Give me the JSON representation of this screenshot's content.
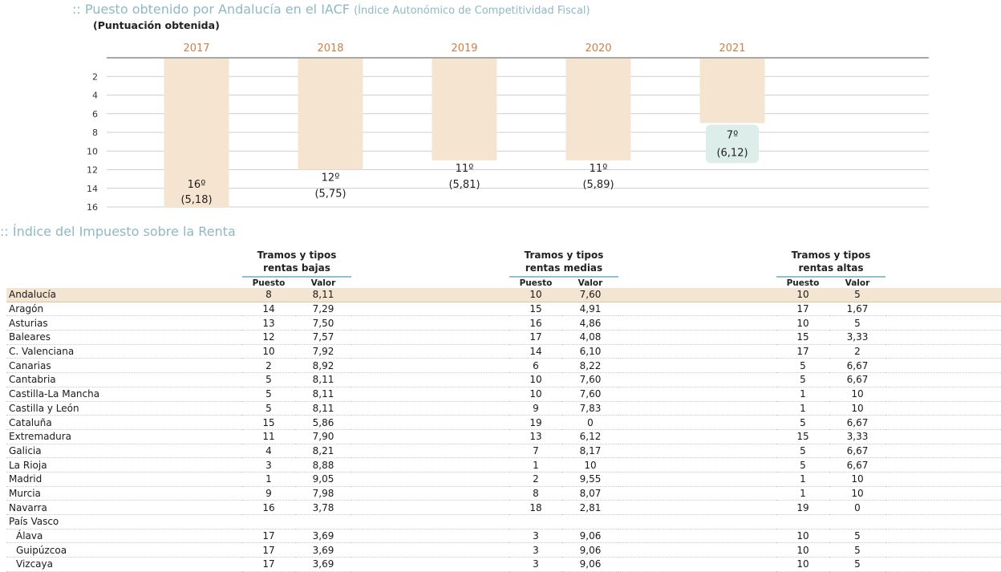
{
  "chart_section": {
    "title": ":: Puesto obtenido por Andalucía en el IACF",
    "title_note": "(Índice Autonómico de Competitividad Fiscal)",
    "subtitle": "(Puntuación obtenida)"
  },
  "chart_data": {
    "type": "bar",
    "title": "Puesto obtenido por Andalucía en el IACF (Índice Autonómico de Competitividad Fiscal)",
    "subtitle": "(Puntuación obtenida)",
    "categories": [
      "2017",
      "2018",
      "2019",
      "2020",
      "2021"
    ],
    "values": [
      16,
      12,
      11,
      11,
      7
    ],
    "scores": [
      "5,18",
      "5,75",
      "5,81",
      "5,89",
      "6,12"
    ],
    "rank_labels": [
      "16º",
      "12º",
      "11º",
      "11º",
      "7º"
    ],
    "score_labels": [
      "(5,18)",
      "(5,75)",
      "(5,81)",
      "(5,89)",
      "(6,12)"
    ],
    "y_axis": {
      "inverted": true,
      "ylim": [
        0,
        16
      ],
      "ticks": [
        "2",
        "4",
        "6",
        "8",
        "10",
        "12",
        "14",
        "16"
      ]
    },
    "xlabel": "",
    "ylabel": "",
    "grid": true,
    "colors": {
      "bar": "#f5e4d0",
      "highlight_box": "#dcedea",
      "year_label": "#c8804c",
      "grid": "#bfbfbf"
    }
  },
  "table_section": {
    "title": ":: Índice del Impuesto sobre la Renta",
    "groups": [
      {
        "line1": "Tramos y tipos",
        "line2": "rentas bajas"
      },
      {
        "line1": "Tramos y tipos",
        "line2": "rentas medias"
      },
      {
        "line1": "Tramos y tipos",
        "line2": "rentas altas"
      }
    ],
    "col_puesto": "Puesto",
    "col_valor": "Valor",
    "rows": [
      {
        "name": "Andalucía",
        "highlight": true,
        "values": [
          "8",
          "8,11",
          "10",
          "7,60",
          "10",
          "5"
        ]
      },
      {
        "name": "Aragón",
        "values": [
          "14",
          "7,29",
          "15",
          "4,91",
          "17",
          "1,67"
        ]
      },
      {
        "name": "Asturias",
        "values": [
          "13",
          "7,50",
          "16",
          "4,86",
          "10",
          "5"
        ]
      },
      {
        "name": "Baleares",
        "values": [
          "12",
          "7,57",
          "17",
          "4,08",
          "15",
          "3,33"
        ]
      },
      {
        "name": "C. Valenciana",
        "values": [
          "10",
          "7,92",
          "14",
          "6,10",
          "17",
          "2"
        ]
      },
      {
        "name": "Canarias",
        "values": [
          "2",
          "8,92",
          "6",
          "8,22",
          "5",
          "6,67"
        ]
      },
      {
        "name": "Cantabria",
        "values": [
          "5",
          "8,11",
          "10",
          "7,60",
          "5",
          "6,67"
        ]
      },
      {
        "name": "Castilla-La Mancha",
        "values": [
          "5",
          "8,11",
          "10",
          "7,60",
          "1",
          "10"
        ]
      },
      {
        "name": "Castilla y León",
        "values": [
          "5",
          "8,11",
          "9",
          "7,83",
          "1",
          "10"
        ]
      },
      {
        "name": "Cataluña",
        "values": [
          "15",
          "5,86",
          "19",
          "0",
          "5",
          "6,67"
        ]
      },
      {
        "name": "Extremadura",
        "values": [
          "11",
          "7,90",
          "13",
          "6,12",
          "15",
          "3,33"
        ]
      },
      {
        "name": "Galicia",
        "values": [
          "4",
          "8,21",
          "7",
          "8,17",
          "5",
          "6,67"
        ]
      },
      {
        "name": "La Rioja",
        "values": [
          "3",
          "8,88",
          "1",
          "10",
          "5",
          "6,67"
        ]
      },
      {
        "name": "Madrid",
        "values": [
          "1",
          "9,05",
          "2",
          "9,55",
          "1",
          "10"
        ]
      },
      {
        "name": "Murcia",
        "values": [
          "9",
          "7,98",
          "8",
          "8,07",
          "1",
          "10"
        ]
      },
      {
        "name": "Navarra",
        "values": [
          "16",
          "3,78",
          "18",
          "2,81",
          "19",
          "0"
        ]
      },
      {
        "name": "País Vasco",
        "values": [
          "",
          "",
          "",
          "",
          "",
          ""
        ]
      },
      {
        "name": "Álava",
        "indent": true,
        "values": [
          "17",
          "3,69",
          "3",
          "9,06",
          "10",
          "5"
        ]
      },
      {
        "name": "Guipúzcoa",
        "indent": true,
        "values": [
          "17",
          "3,69",
          "3",
          "9,06",
          "10",
          "5"
        ]
      },
      {
        "name": "Vizcaya",
        "indent": true,
        "values": [
          "17",
          "3,69",
          "3",
          "9,06",
          "10",
          "5"
        ]
      }
    ]
  }
}
